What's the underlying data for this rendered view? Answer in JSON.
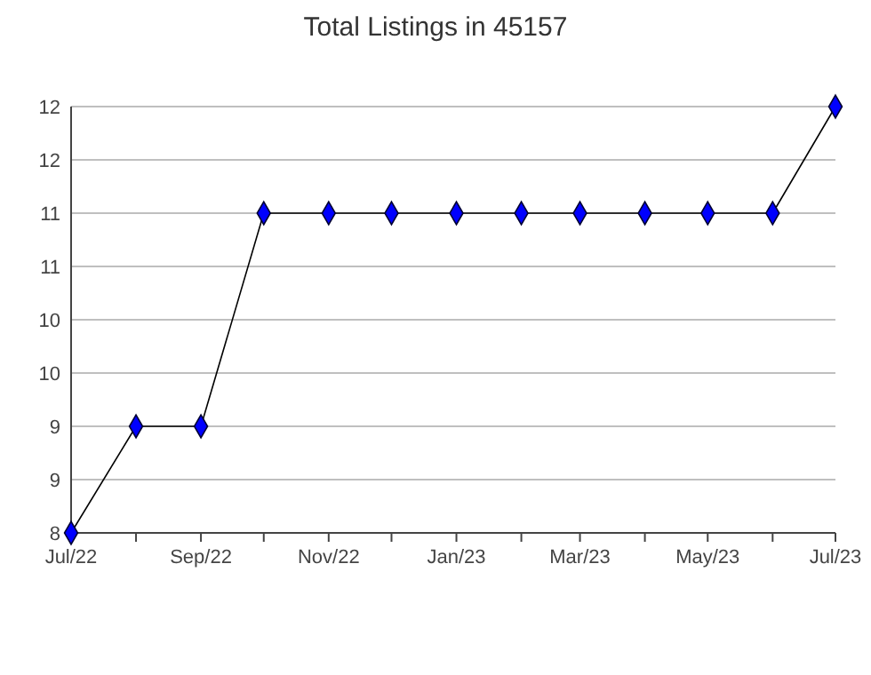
{
  "chart_data": {
    "type": "line",
    "title": "Total Listings in 45157",
    "x": [
      "2022-07",
      "2022-08",
      "2022-09",
      "2022-10",
      "2022-11",
      "2022-12",
      "2023-01",
      "2023-02",
      "2023-03",
      "2023-04",
      "2023-05",
      "2023-06",
      "2023-07"
    ],
    "series": [
      {
        "color": "#0000ff",
        "values": [
          8,
          9,
          9,
          11,
          11,
          11,
          11,
          11,
          11,
          11,
          11,
          11,
          12
        ]
      }
    ],
    "xlim": [
      "2022-07",
      "2023-07"
    ],
    "xticks": [
      {
        "value": "2022-07",
        "label": "Jul/22"
      },
      {
        "value": "2022-08",
        "label": null
      },
      {
        "value": "2022-09",
        "label": "Sep/22"
      },
      {
        "value": "2022-10",
        "label": null
      },
      {
        "value": "2022-11",
        "label": "Nov/22"
      },
      {
        "value": "2022-12",
        "label": null
      },
      {
        "value": "2023-01",
        "label": "Jan/23"
      },
      {
        "value": "2023-02",
        "label": null
      },
      {
        "value": "2023-03",
        "label": "Mar/23"
      },
      {
        "value": "2023-04",
        "label": null
      },
      {
        "value": "2023-05",
        "label": "May/23"
      },
      {
        "value": "2023-06",
        "label": null
      },
      {
        "value": "2023-07",
        "label": "Jul/23"
      }
    ],
    "ylim": [
      8,
      12
    ],
    "yticks": [
      8,
      {
        "value": 8.5,
        "label": "9"
      },
      9,
      {
        "value": 9.5,
        "label": "10"
      },
      10,
      {
        "value": 10.5,
        "label": "11"
      },
      11,
      {
        "value": 11.5,
        "label": "12"
      },
      12
    ],
    "grid": "y",
    "marker": "diamond",
    "line_style": "solid"
  }
}
